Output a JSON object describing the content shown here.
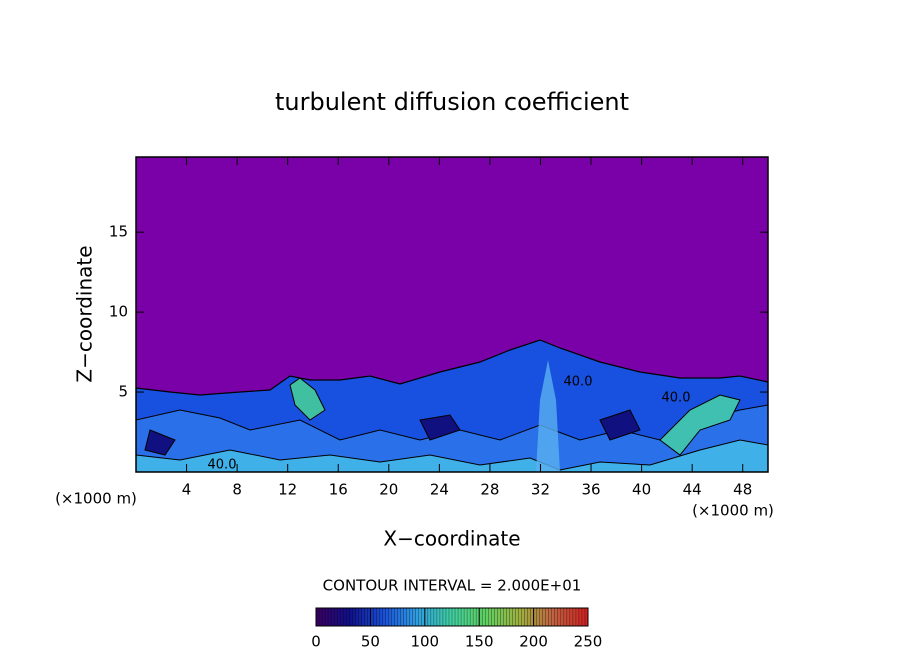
{
  "chart_data": {
    "type": "contour",
    "title": "turbulent diffusion coefficient",
    "x_label": "X−coordinate",
    "y_label": "Z−coordinate",
    "x_unit": "(×1000 m)",
    "y_unit": "(×1000 m)",
    "xlim": [
      0,
      50
    ],
    "ylim": [
      0,
      19.7
    ],
    "xticks": [
      4,
      8,
      12,
      16,
      20,
      24,
      28,
      32,
      36,
      40,
      44,
      48
    ],
    "yticks": [
      5,
      10,
      15
    ],
    "contour_interval_label": "CONTOUR INTERVAL = 2.000E+01",
    "contour_labels": [
      "40.0",
      "40.0",
      "40.0"
    ],
    "colorbar": {
      "lim": [
        0,
        250
      ],
      "ticks": [
        0,
        50,
        100,
        150,
        200,
        250
      ],
      "colors": [
        "#3a0060",
        "#10108a",
        "#1a50d8",
        "#30a0e0",
        "#40d0a0",
        "#60d060",
        "#a0b040",
        "#c06040",
        "#d02020"
      ]
    }
  }
}
